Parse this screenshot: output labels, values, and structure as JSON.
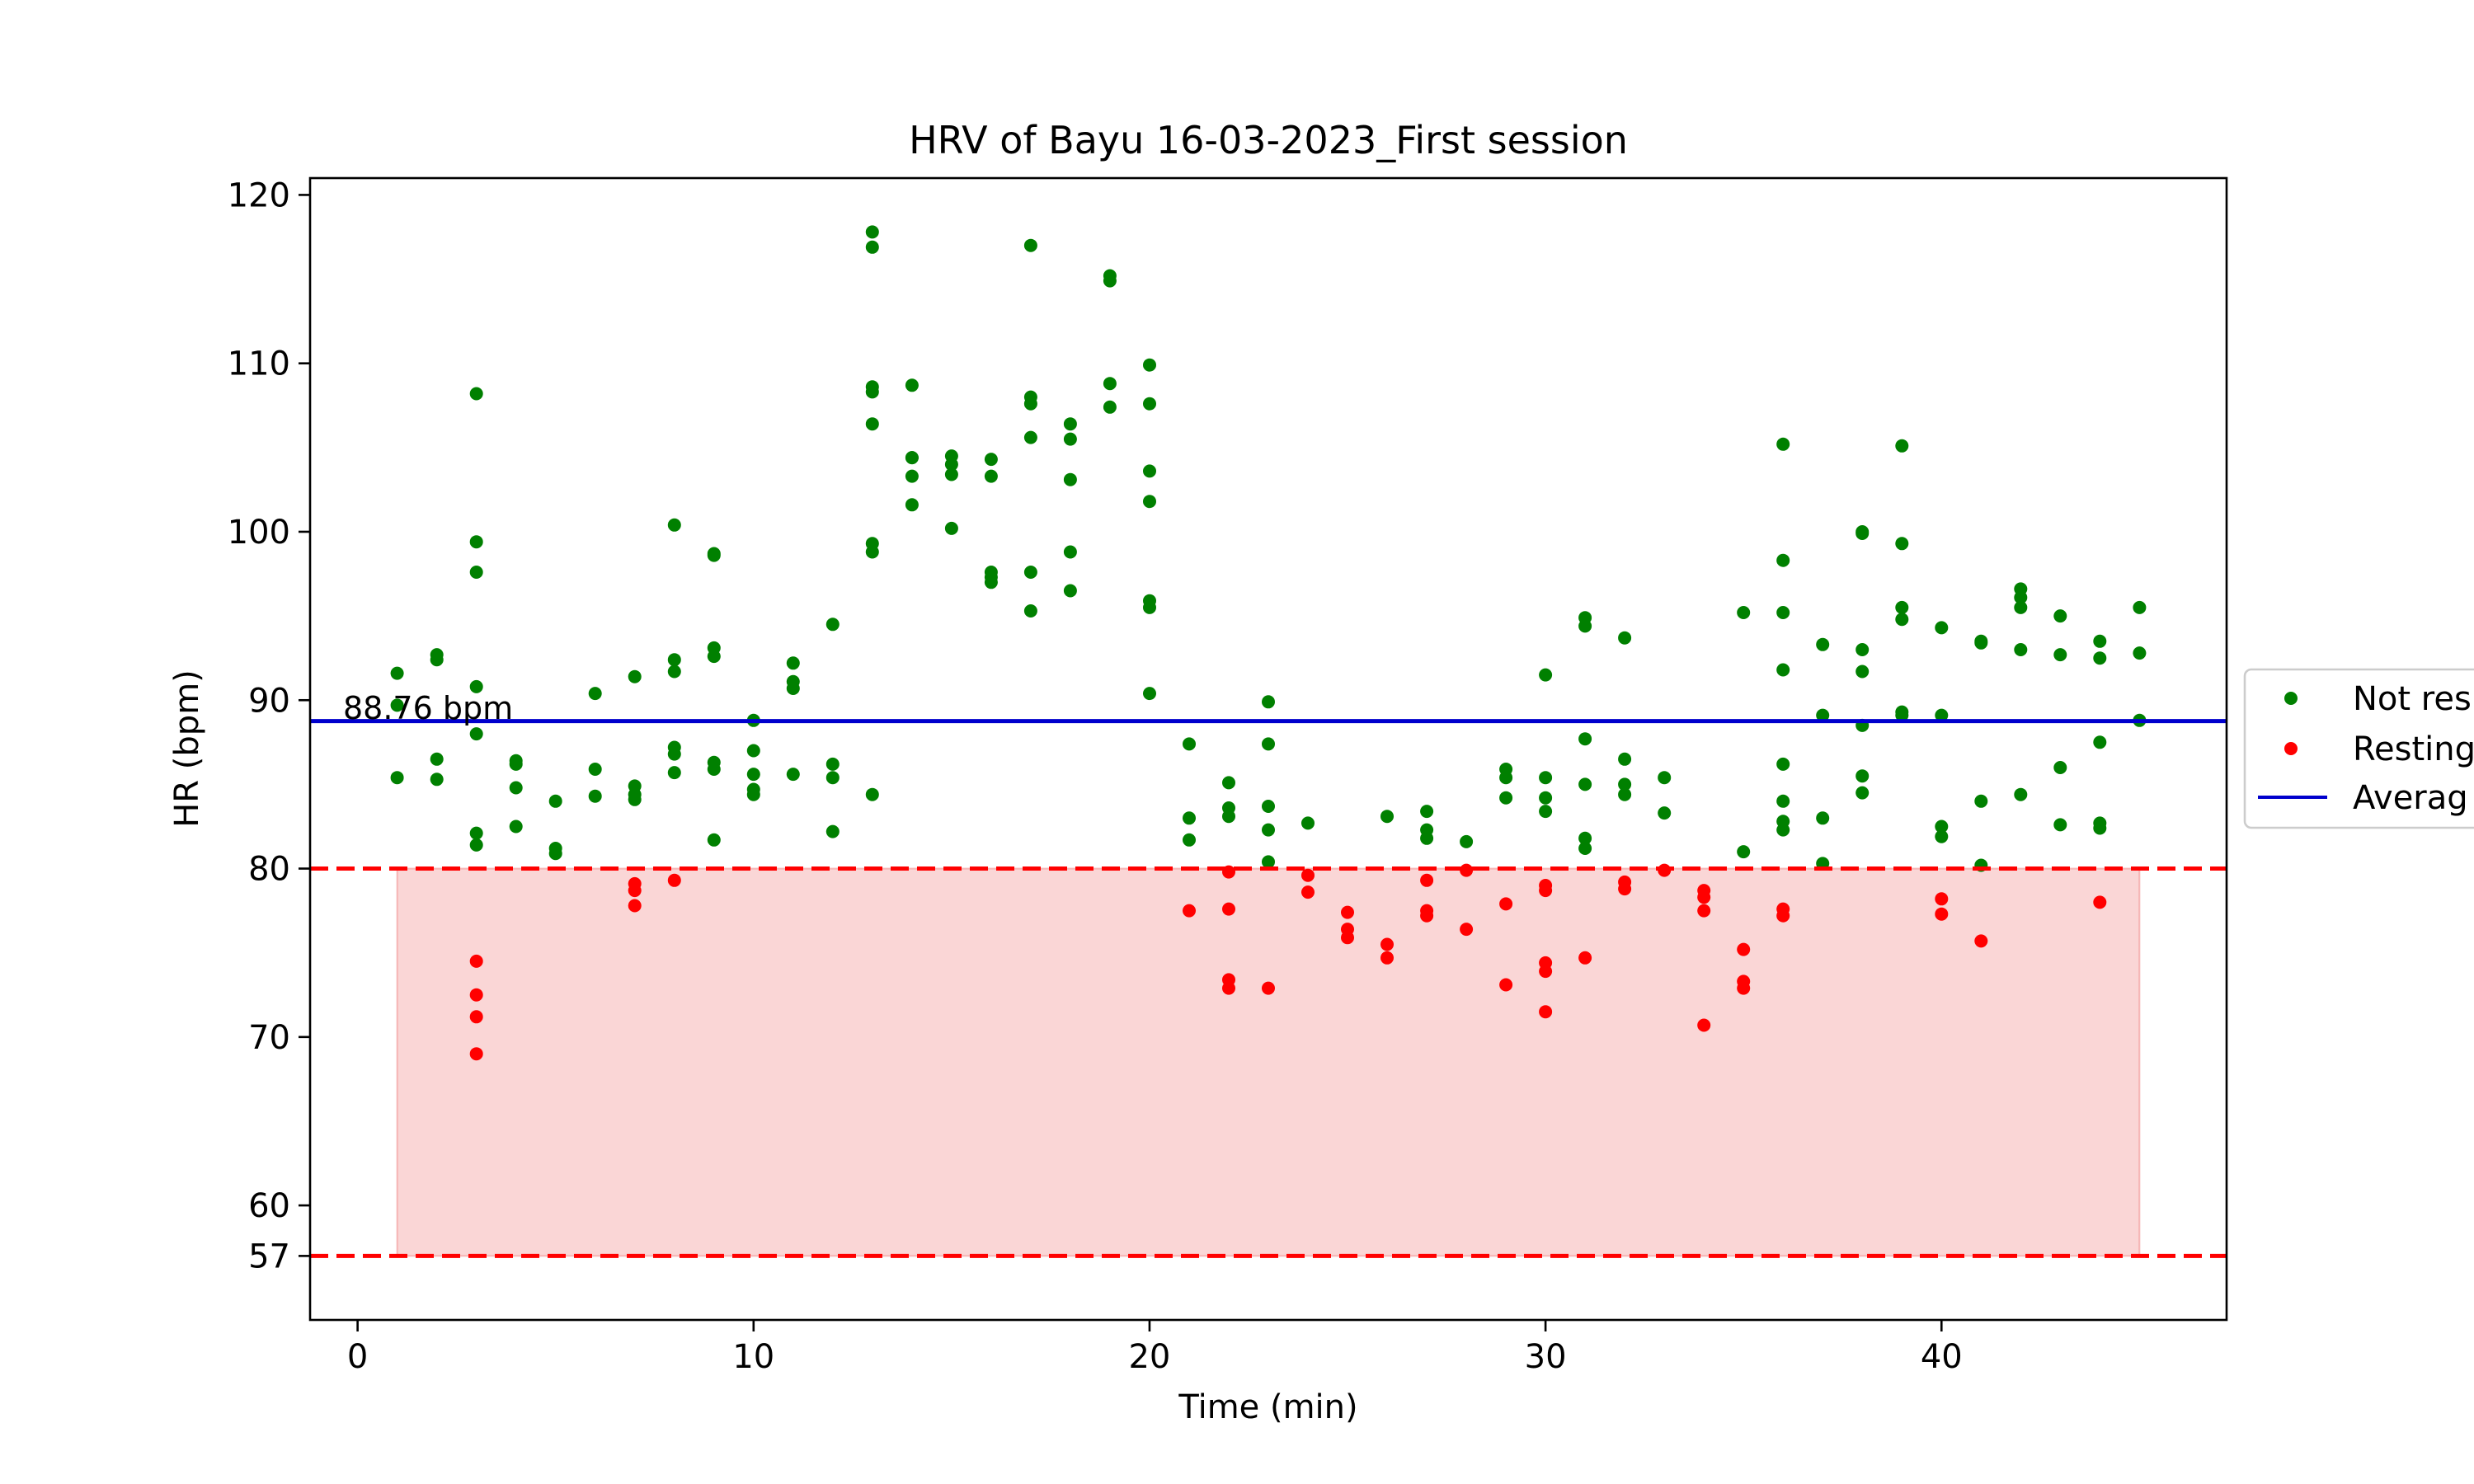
{
  "chart_data": {
    "type": "scatter",
    "title": "HRV of Bayu 16-03-2023_First session",
    "xlabel": "Time (min)",
    "ylabel": "HR (bpm)",
    "xlim": [
      -1.2,
      47.2
    ],
    "ylim": [
      53.2,
      121
    ],
    "x_ticks": [
      0,
      10,
      20,
      30,
      40
    ],
    "y_ticks": [
      57,
      60,
      70,
      80,
      90,
      100,
      110,
      120
    ],
    "grid": false,
    "legend_position": "right (clipped)",
    "legend": [
      {
        "label": "Not res",
        "marker": "dot",
        "color": "#008000"
      },
      {
        "label": "Resting",
        "marker": "dot",
        "color": "#ff0000"
      },
      {
        "label": "Averag",
        "marker": "line",
        "color": "#0000cd"
      }
    ],
    "average": {
      "value": 88.76,
      "label": "88.76 bpm",
      "color": "#0000cd"
    },
    "resting_band": {
      "lower": 57,
      "upper": 80,
      "x_start": 1,
      "x_end": 45,
      "fill": "#f08080",
      "line_color": "#ff0000"
    },
    "series": [
      {
        "name": "Not res",
        "color": "#008000",
        "points": [
          [
            1,
            91.6
          ],
          [
            1,
            89.7
          ],
          [
            1,
            85.4
          ],
          [
            2,
            92.7
          ],
          [
            2,
            92.4
          ],
          [
            2,
            86.5
          ],
          [
            2,
            85.3
          ],
          [
            3,
            108.2
          ],
          [
            3,
            99.4
          ],
          [
            3,
            97.6
          ],
          [
            3,
            90.8
          ],
          [
            3,
            88
          ],
          [
            3,
            82.1
          ],
          [
            3,
            81.4
          ],
          [
            4,
            86.4
          ],
          [
            4,
            86.2
          ],
          [
            4,
            84.8
          ],
          [
            4,
            82.5
          ],
          [
            5,
            84
          ],
          [
            5,
            81.2
          ],
          [
            5,
            80.9
          ],
          [
            6,
            90.4
          ],
          [
            6,
            85.9
          ],
          [
            6,
            84.3
          ],
          [
            7,
            91.4
          ],
          [
            7,
            84.9
          ],
          [
            7,
            84.4
          ],
          [
            7,
            84.1
          ],
          [
            8,
            100.4
          ],
          [
            8,
            92.4
          ],
          [
            8,
            91.7
          ],
          [
            8,
            87.2
          ],
          [
            8,
            86.8
          ],
          [
            8,
            85.7
          ],
          [
            9,
            98.7
          ],
          [
            9,
            98.6
          ],
          [
            9,
            93.1
          ],
          [
            9,
            92.6
          ],
          [
            9,
            86.3
          ],
          [
            9,
            85.9
          ],
          [
            9,
            81.7
          ],
          [
            10,
            88.8
          ],
          [
            10,
            87
          ],
          [
            10,
            85.6
          ],
          [
            10,
            84.7
          ],
          [
            10,
            84.4
          ],
          [
            11,
            92.2
          ],
          [
            11,
            91.1
          ],
          [
            11,
            90.7
          ],
          [
            11,
            85.6
          ],
          [
            12,
            94.5
          ],
          [
            12,
            86.2
          ],
          [
            12,
            85.4
          ],
          [
            12,
            82.2
          ],
          [
            13,
            117.8
          ],
          [
            13,
            116.9
          ],
          [
            13,
            108.6
          ],
          [
            13,
            108.3
          ],
          [
            13,
            106.4
          ],
          [
            13,
            99.3
          ],
          [
            13,
            98.8
          ],
          [
            13,
            84.4
          ],
          [
            14,
            108.7
          ],
          [
            14,
            104.4
          ],
          [
            14,
            104.4
          ],
          [
            14,
            103.3
          ],
          [
            14,
            101.6
          ],
          [
            15,
            104.5
          ],
          [
            15,
            104
          ],
          [
            15,
            103.4
          ],
          [
            15,
            100.2
          ],
          [
            16,
            104.3
          ],
          [
            16,
            103.3
          ],
          [
            16,
            97.6
          ],
          [
            16,
            97.3
          ],
          [
            16,
            97
          ],
          [
            17,
            117
          ],
          [
            17,
            108
          ],
          [
            17,
            107.6
          ],
          [
            17,
            105.6
          ],
          [
            17,
            97.6
          ],
          [
            17,
            95.3
          ],
          [
            18,
            106.4
          ],
          [
            18,
            105.5
          ],
          [
            18,
            103.1
          ],
          [
            18,
            98.8
          ],
          [
            18,
            96.5
          ],
          [
            19,
            115.2
          ],
          [
            19,
            114.9
          ],
          [
            19,
            108.8
          ],
          [
            19,
            107.4
          ],
          [
            20,
            109.9
          ],
          [
            20,
            107.6
          ],
          [
            20,
            103.6
          ],
          [
            20,
            101.8
          ],
          [
            20,
            95.9
          ],
          [
            20,
            95.5
          ],
          [
            20,
            90.4
          ],
          [
            21,
            87.4
          ],
          [
            21,
            83
          ],
          [
            21,
            81.7
          ],
          [
            22,
            85.1
          ],
          [
            22,
            83.6
          ],
          [
            22,
            83.1
          ],
          [
            23,
            89.9
          ],
          [
            23,
            87.4
          ],
          [
            23,
            83.7
          ],
          [
            23,
            82.3
          ],
          [
            23,
            80.4
          ],
          [
            24,
            82.7
          ],
          [
            26,
            83.1
          ],
          [
            27,
            83.4
          ],
          [
            27,
            82.3
          ],
          [
            27,
            81.8
          ],
          [
            28,
            81.6
          ],
          [
            29,
            85.9
          ],
          [
            29,
            85.4
          ],
          [
            29,
            84.2
          ],
          [
            30,
            91.5
          ],
          [
            30,
            85.4
          ],
          [
            30,
            84.2
          ],
          [
            30,
            83.4
          ],
          [
            31,
            94.9
          ],
          [
            31,
            94.4
          ],
          [
            31,
            87.7
          ],
          [
            31,
            85
          ],
          [
            31,
            81.8
          ],
          [
            31,
            81.2
          ],
          [
            32,
            93.7
          ],
          [
            32,
            86.5
          ],
          [
            32,
            85
          ],
          [
            32,
            84.4
          ],
          [
            33,
            85.4
          ],
          [
            33,
            83.3
          ],
          [
            35,
            95.2
          ],
          [
            35,
            81
          ],
          [
            36,
            105.2
          ],
          [
            36,
            98.3
          ],
          [
            36,
            95.2
          ],
          [
            36,
            91.8
          ],
          [
            36,
            86.2
          ],
          [
            36,
            84
          ],
          [
            36,
            82.8
          ],
          [
            36,
            82.3
          ],
          [
            37,
            93.3
          ],
          [
            37,
            89.1
          ],
          [
            37,
            83
          ],
          [
            37,
            80.3
          ],
          [
            38,
            100
          ],
          [
            38,
            99.9
          ],
          [
            38,
            93
          ],
          [
            38,
            91.7
          ],
          [
            38,
            88.5
          ],
          [
            38,
            85.5
          ],
          [
            38,
            84.5
          ],
          [
            39,
            105.1
          ],
          [
            39,
            99.3
          ],
          [
            39,
            95.5
          ],
          [
            39,
            94.8
          ],
          [
            39,
            89.3
          ],
          [
            39,
            89.1
          ],
          [
            40,
            94.3
          ],
          [
            40,
            89.1
          ],
          [
            40,
            82.5
          ],
          [
            40,
            81.9
          ],
          [
            41,
            93.5
          ],
          [
            41,
            93.4
          ],
          [
            41,
            84
          ],
          [
            41,
            80.2
          ],
          [
            42,
            96.6
          ],
          [
            42,
            96.1
          ],
          [
            42,
            95.5
          ],
          [
            42,
            93
          ],
          [
            42,
            84.4
          ],
          [
            43,
            95
          ],
          [
            43,
            92.7
          ],
          [
            43,
            86
          ],
          [
            43,
            82.6
          ],
          [
            44,
            93.5
          ],
          [
            44,
            92.5
          ],
          [
            44,
            87.5
          ],
          [
            44,
            82.7
          ],
          [
            44,
            82.4
          ],
          [
            45,
            95.5
          ],
          [
            45,
            92.8
          ],
          [
            45,
            88.8
          ]
        ]
      },
      {
        "name": "Resting",
        "color": "#ff0000",
        "points": [
          [
            3,
            74.5
          ],
          [
            3,
            72.5
          ],
          [
            3,
            71.2
          ],
          [
            3,
            69
          ],
          [
            7,
            79.1
          ],
          [
            7,
            78.7
          ],
          [
            7,
            77.8
          ],
          [
            8,
            79.3
          ],
          [
            21,
            77.5
          ],
          [
            22,
            79.8
          ],
          [
            22,
            77.6
          ],
          [
            22,
            73.4
          ],
          [
            22,
            72.9
          ],
          [
            23,
            72.9
          ],
          [
            24,
            79.6
          ],
          [
            24,
            78.6
          ],
          [
            25,
            77.4
          ],
          [
            25,
            76.4
          ],
          [
            25,
            75.9
          ],
          [
            26,
            75.5
          ],
          [
            26,
            74.7
          ],
          [
            27,
            79.3
          ],
          [
            27,
            77.5
          ],
          [
            27,
            77.2
          ],
          [
            28,
            79.9
          ],
          [
            28,
            76.4
          ],
          [
            29,
            77.9
          ],
          [
            29,
            73.1
          ],
          [
            30,
            79
          ],
          [
            30,
            78.7
          ],
          [
            30,
            74.4
          ],
          [
            30,
            73.9
          ],
          [
            30,
            71.5
          ],
          [
            31,
            74.7
          ],
          [
            32,
            79.2
          ],
          [
            32,
            78.8
          ],
          [
            33,
            79.9
          ],
          [
            34,
            78.7
          ],
          [
            34,
            78.3
          ],
          [
            34,
            77.5
          ],
          [
            34,
            70.7
          ],
          [
            35,
            75.2
          ],
          [
            35,
            73.3
          ],
          [
            35,
            72.9
          ],
          [
            36,
            77.6
          ],
          [
            36,
            77.2
          ],
          [
            40,
            78.2
          ],
          [
            40,
            77.3
          ],
          [
            41,
            75.7
          ],
          [
            44,
            78
          ]
        ]
      }
    ]
  }
}
